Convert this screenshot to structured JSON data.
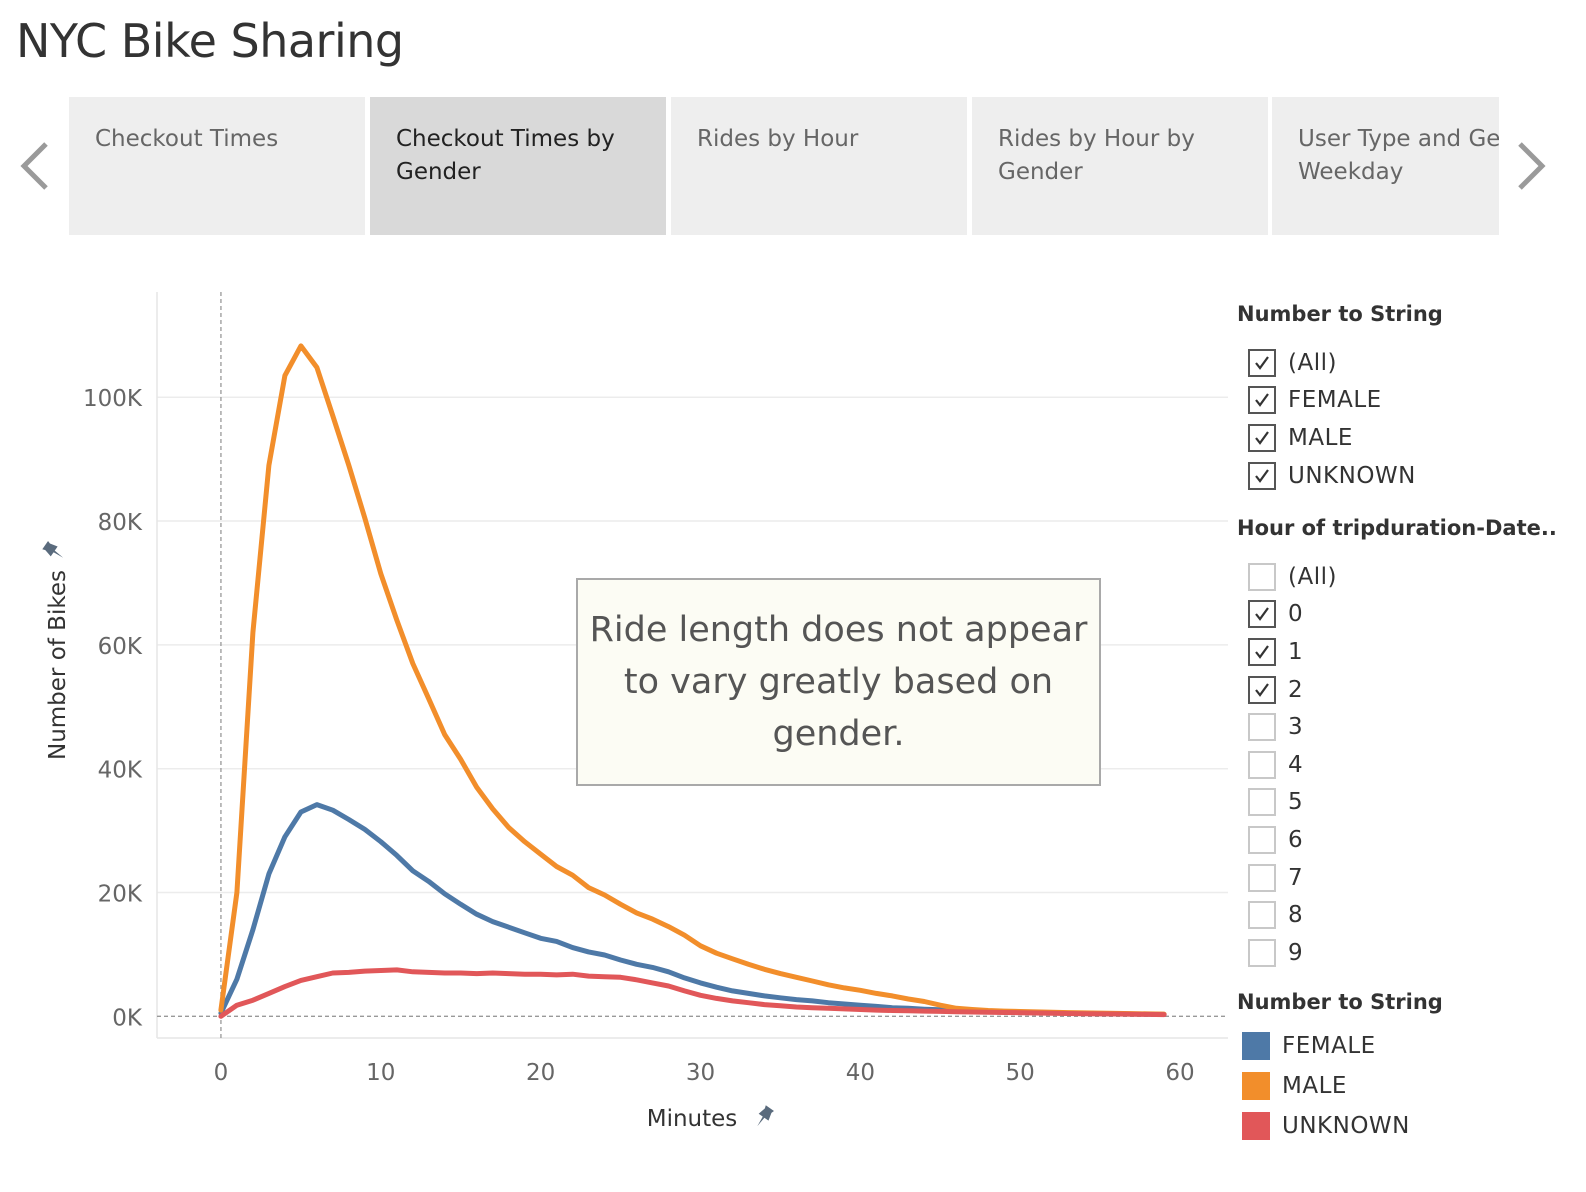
{
  "header": {
    "title": "NYC Bike Sharing"
  },
  "nav": {
    "prev_icon": "chevron-left-icon",
    "next_icon": "chevron-right-icon"
  },
  "tabs": [
    {
      "label": "Checkout Times",
      "active": false
    },
    {
      "label": "Checkout Times by Gender",
      "active": true
    },
    {
      "label": "Rides by Hour",
      "active": false
    },
    {
      "label": "Rides by Hour by Gender",
      "active": false
    },
    {
      "label": "User Type and Gender by Weekday",
      "active": false
    }
  ],
  "annotation": {
    "text": "Ride length does not appear to vary greatly based on gender."
  },
  "filters": {
    "gender": {
      "title": "Number to String",
      "items": [
        {
          "label": "(All)",
          "checked": true
        },
        {
          "label": "FEMALE",
          "checked": true
        },
        {
          "label": "MALE",
          "checked": true
        },
        {
          "label": "UNKNOWN",
          "checked": true
        }
      ]
    },
    "hour": {
      "title": "Hour of tripduration-Date..",
      "items": [
        {
          "label": "(All)",
          "checked": false
        },
        {
          "label": "0",
          "checked": true
        },
        {
          "label": "1",
          "checked": true
        },
        {
          "label": "2",
          "checked": true
        },
        {
          "label": "3",
          "checked": false
        },
        {
          "label": "4",
          "checked": false
        },
        {
          "label": "5",
          "checked": false
        },
        {
          "label": "6",
          "checked": false
        },
        {
          "label": "7",
          "checked": false
        },
        {
          "label": "8",
          "checked": false
        },
        {
          "label": "9",
          "checked": false
        }
      ]
    }
  },
  "legend": {
    "title": "Number to String",
    "items": [
      {
        "label": "FEMALE",
        "color": "#4e79a7"
      },
      {
        "label": "MALE",
        "color": "#f28e2b"
      },
      {
        "label": "UNKNOWN",
        "color": "#e15759"
      }
    ]
  },
  "chart_data": {
    "type": "line",
    "xlabel": "Minutes",
    "ylabel": "Number of Bikes",
    "xlim": [
      -4,
      63
    ],
    "ylim": [
      -3500,
      117000
    ],
    "x_ticks": [
      0,
      10,
      20,
      30,
      40,
      50,
      60
    ],
    "y_ticks": [
      0,
      20000,
      40000,
      60000,
      80000,
      100000
    ],
    "y_tick_labels": [
      "0K",
      "20K",
      "40K",
      "60K",
      "80K",
      "100K"
    ],
    "grid": true,
    "reference_line_x": 0,
    "reference_line_y": 0,
    "x": [
      0,
      1,
      2,
      3,
      4,
      5,
      6,
      7,
      8,
      9,
      10,
      11,
      12,
      13,
      14,
      15,
      16,
      17,
      18,
      19,
      20,
      21,
      22,
      23,
      24,
      25,
      26,
      27,
      28,
      29,
      30,
      31,
      32,
      33,
      34,
      35,
      36,
      37,
      38,
      39,
      40,
      41,
      42,
      43,
      44,
      45,
      46,
      47,
      48,
      49,
      50,
      51,
      52,
      53,
      54,
      55,
      56,
      57,
      58,
      59
    ],
    "series": [
      {
        "name": "FEMALE",
        "color": "#4e79a7",
        "values": [
          500,
          6000,
          14000,
          23000,
          29000,
          33000,
          34200,
          33300,
          31800,
          30200,
          28200,
          26000,
          23500,
          21800,
          19800,
          18100,
          16500,
          15300,
          14400,
          13500,
          12600,
          12100,
          11100,
          10400,
          9900,
          9100,
          8400,
          7900,
          7200,
          6200,
          5400,
          4700,
          4100,
          3700,
          3300,
          3000,
          2700,
          2500,
          2200,
          2000,
          1800,
          1600,
          1400,
          1300,
          1150,
          1050,
          950,
          850,
          780,
          720,
          660,
          610,
          560,
          510,
          470,
          440,
          410,
          380,
          350,
          320
        ]
      },
      {
        "name": "MALE",
        "color": "#f28e2b",
        "values": [
          1000,
          20000,
          62000,
          89000,
          103500,
          108300,
          104800,
          97000,
          89000,
          80500,
          71500,
          64000,
          57000,
          51300,
          45500,
          41500,
          37000,
          33500,
          30500,
          28200,
          26200,
          24200,
          22800,
          20800,
          19600,
          18100,
          16700,
          15700,
          14500,
          13100,
          11400,
          10200,
          9300,
          8400,
          7600,
          6900,
          6300,
          5700,
          5100,
          4600,
          4200,
          3700,
          3300,
          2800,
          2400,
          1800,
          1300,
          1100,
          950,
          850,
          780,
          720,
          660,
          610,
          560,
          520,
          480,
          440,
          400,
          360
        ]
      },
      {
        "name": "UNKNOWN",
        "color": "#e15759",
        "values": [
          0,
          1800,
          2600,
          3700,
          4800,
          5800,
          6400,
          7000,
          7100,
          7300,
          7400,
          7500,
          7200,
          7100,
          7000,
          7000,
          6900,
          7000,
          6900,
          6800,
          6800,
          6700,
          6800,
          6500,
          6400,
          6300,
          5900,
          5400,
          4900,
          4100,
          3400,
          2900,
          2500,
          2200,
          1900,
          1700,
          1500,
          1400,
          1300,
          1200,
          1100,
          1000,
          950,
          900,
          850,
          800,
          750,
          700,
          660,
          620,
          580,
          540,
          500,
          460,
          430,
          400,
          370,
          340,
          310,
          280
        ]
      }
    ]
  }
}
